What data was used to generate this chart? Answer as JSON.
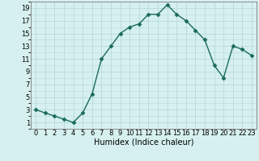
{
  "x": [
    0,
    1,
    2,
    3,
    4,
    5,
    6,
    7,
    8,
    9,
    10,
    11,
    12,
    13,
    14,
    15,
    16,
    17,
    18,
    19,
    20,
    21,
    22,
    23
  ],
  "y": [
    3,
    2.5,
    2,
    1.5,
    1,
    2.5,
    5.5,
    11,
    13,
    15,
    16,
    16.5,
    18,
    18,
    19.5,
    18,
    17,
    15.5,
    14,
    10,
    8,
    13,
    12.5,
    11.5
  ],
  "xlabel": "Humidex (Indice chaleur)",
  "xlim": [
    -0.5,
    23.5
  ],
  "ylim": [
    0,
    20
  ],
  "yticks": [
    1,
    3,
    5,
    7,
    9,
    11,
    13,
    15,
    17,
    19
  ],
  "xticks": [
    0,
    1,
    2,
    3,
    4,
    5,
    6,
    7,
    8,
    9,
    10,
    11,
    12,
    13,
    14,
    15,
    16,
    17,
    18,
    19,
    20,
    21,
    22,
    23
  ],
  "line_color": "#1a6b5a",
  "marker": "D",
  "bg_color": "#d6f0f0",
  "grid_color": "#b8dada",
  "marker_size": 2.5,
  "line_width": 1.0,
  "xlabel_fontsize": 7,
  "tick_fontsize": 6
}
